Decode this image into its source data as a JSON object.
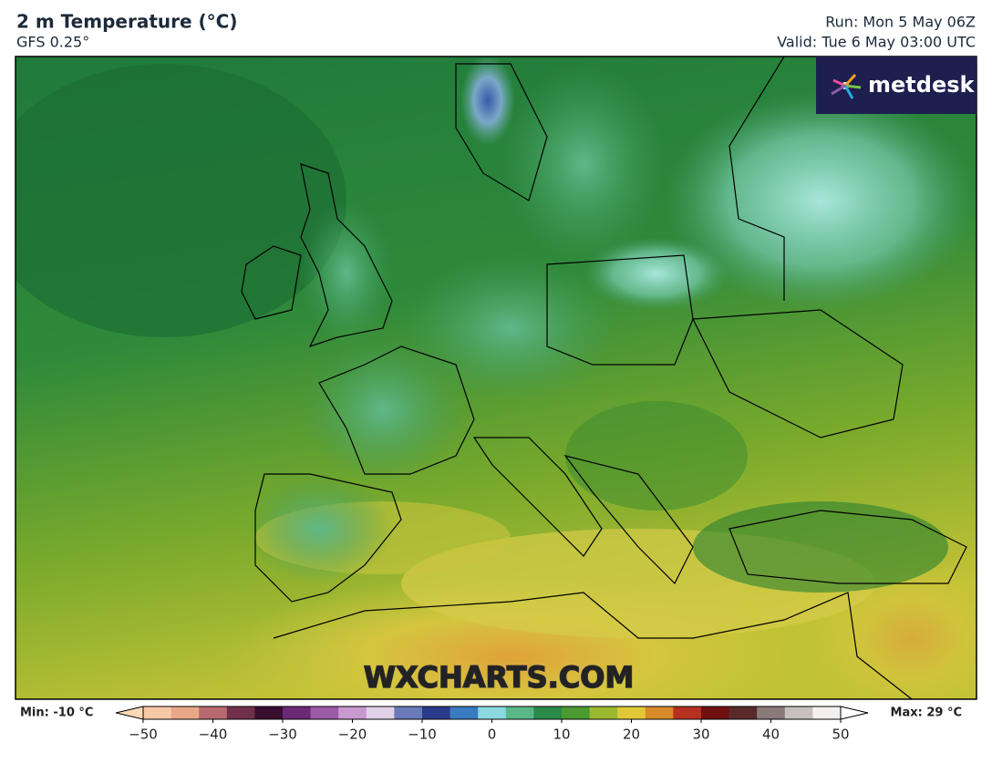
{
  "header": {
    "title": "2 m Temperature (°C)",
    "model": "GFS 0.25°",
    "run": "Run: Mon 5 May 06Z",
    "valid": "Valid: Tue 6 May 03:00 UTC"
  },
  "logo": "metdesk",
  "watermark": "WXCHARTS.COM",
  "colorbar": {
    "min_label": "Min: -10 °C",
    "max_label": "Max: 29 °C",
    "lim": [
      -50,
      50
    ],
    "ticks": [
      {
        "value": -50,
        "label": "−50"
      },
      {
        "value": -40,
        "label": "−40"
      },
      {
        "value": -30,
        "label": "−30"
      },
      {
        "value": -20,
        "label": "−20"
      },
      {
        "value": -10,
        "label": "−10"
      },
      0,
      10,
      20,
      30,
      40,
      50
    ]
  }
}
